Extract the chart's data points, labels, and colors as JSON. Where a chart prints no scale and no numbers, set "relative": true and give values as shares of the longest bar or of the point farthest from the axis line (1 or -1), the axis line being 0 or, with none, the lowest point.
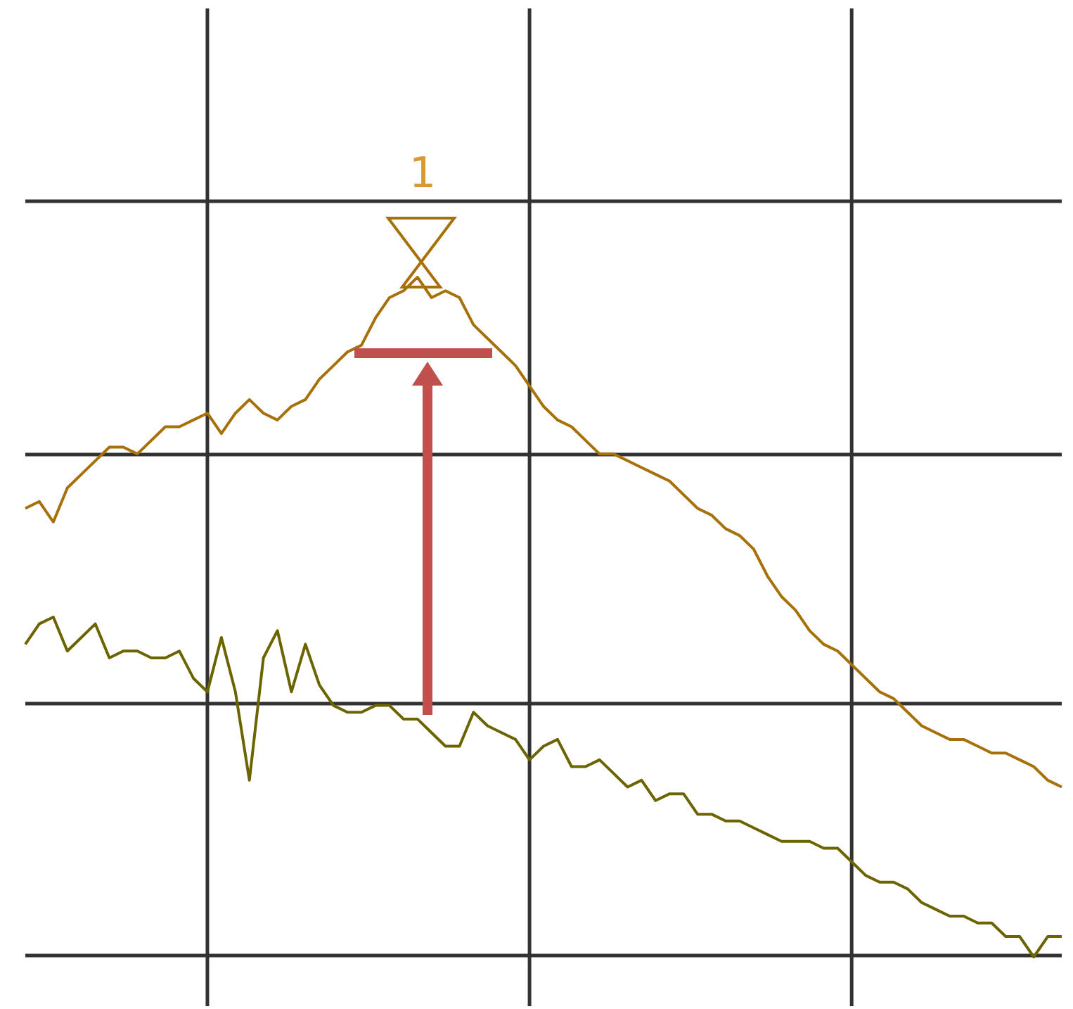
{
  "chart_data": {
    "type": "line",
    "relative": true,
    "grid": true,
    "marker": "none",
    "annotations": [
      "1"
    ],
    "categories": [
      null,
      null,
      null,
      null,
      null,
      null,
      null,
      null,
      null,
      null,
      null,
      null,
      null,
      null,
      null,
      null,
      null,
      null,
      null,
      null,
      null,
      null,
      null,
      null,
      null,
      null,
      null,
      null,
      null,
      null,
      null,
      null,
      null,
      null,
      null,
      null,
      null,
      null,
      null,
      null,
      null,
      null,
      null,
      null,
      null,
      null,
      null,
      null,
      null,
      null,
      null,
      null,
      null,
      null,
      null,
      null,
      null,
      null,
      null,
      null,
      null,
      null,
      null,
      null,
      null,
      null,
      null,
      null,
      null,
      null,
      null,
      null,
      null,
      null,
      null
    ],
    "series": [
      {
        "color": "#a87008",
        "values": [
          0.66,
          0.67,
          0.64,
          0.69,
          0.71,
          0.73,
          0.75,
          0.75,
          0.74,
          0.76,
          0.78,
          0.78,
          0.79,
          0.8,
          0.77,
          0.8,
          0.82,
          0.8,
          0.79,
          0.81,
          0.82,
          0.85,
          0.87,
          0.89,
          0.9,
          0.94,
          0.97,
          0.98,
          1,
          0.97,
          0.98,
          0.97,
          0.93,
          0.91,
          0.89,
          0.87,
          0.84,
          0.81,
          0.79,
          0.78,
          0.76,
          0.74,
          0.74,
          0.73,
          0.72,
          0.71,
          0.7,
          0.68,
          0.66,
          0.65,
          0.63,
          0.62,
          0.6,
          0.56,
          0.53,
          0.51,
          0.48,
          0.46,
          0.45,
          0.43,
          0.41,
          0.39,
          0.38,
          0.36,
          0.34,
          0.33,
          0.32,
          0.32,
          0.31,
          0.3,
          0.3,
          0.29,
          0.28,
          0.26,
          0.25
        ]
      },
      {
        "color": "#6b6400",
        "values": [
          0.46,
          0.49,
          0.5,
          0.45,
          0.47,
          0.49,
          0.44,
          0.45,
          0.45,
          0.44,
          0.44,
          0.45,
          0.41,
          0.39,
          0.47,
          0.39,
          0.26,
          0.44,
          0.48,
          0.39,
          0.46,
          0.4,
          0.37,
          0.36,
          0.36,
          0.37,
          0.37,
          0.35,
          0.35,
          0.33,
          0.31,
          0.31,
          0.36,
          0.34,
          0.33,
          0.32,
          0.29,
          0.31,
          0.32,
          0.28,
          0.28,
          0.29,
          0.27,
          0.25,
          0.26,
          0.23,
          0.24,
          0.24,
          0.21,
          0.21,
          0.2,
          0.2,
          0.19,
          0.18,
          0.17,
          0.17,
          0.17,
          0.16,
          0.16,
          0.14,
          0.12,
          0.11,
          0.11,
          0.1,
          0.08,
          0.07,
          0.06,
          0.06,
          0.05,
          0.05,
          0.03,
          0.03,
          0,
          0.03,
          0.03
        ]
      }
    ]
  }
}
